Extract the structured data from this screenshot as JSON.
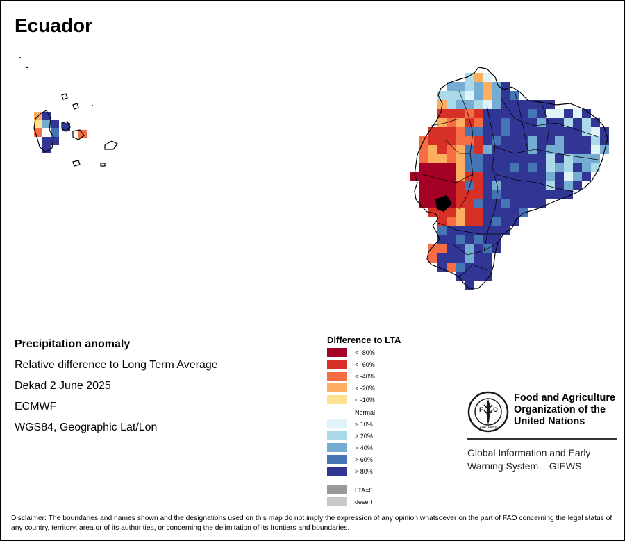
{
  "title": "Ecuador",
  "info": {
    "heading": "Precipitation anomaly",
    "subtitle": "Relative difference to Long Term Average",
    "period": "Dekad 2 June 2025",
    "source": "ECMWF",
    "projection": "WGS84, Geographic Lat/Lon"
  },
  "legend": {
    "title": "Difference to LTA",
    "items": [
      {
        "label": "< -80%",
        "color": "#a50026"
      },
      {
        "label": "< -60%",
        "color": "#d73027"
      },
      {
        "label": "< -40%",
        "color": "#f46d43"
      },
      {
        "label": "< -20%",
        "color": "#fdae61"
      },
      {
        "label": "< -10%",
        "color": "#fee090"
      },
      {
        "label": "> 10%",
        "color": "#e0f3f8"
      },
      {
        "label": "> 20%",
        "color": "#abd9e9"
      },
      {
        "label": "> 40%",
        "color": "#74add1"
      },
      {
        "label": "> 60%",
        "color": "#4575b4"
      },
      {
        "label": "> 80%",
        "color": "#313695"
      },
      {
        "label": "LTA=0",
        "color": "#999999"
      },
      {
        "label": "desert",
        "color": "#c8c8c8"
      }
    ],
    "normal_label": "Normal"
  },
  "fao": {
    "line1": "Food and Agriculture",
    "line2": "Organization of the",
    "line3": "United Nations",
    "logo_text": "FAO",
    "logo_motto": "FIAT PANIS"
  },
  "giews": {
    "line1": "Global Information and Early",
    "line2": "Warning System – GIEWS"
  },
  "disclaimer": "Disclaimer: The boundaries and names shown and the designations used on this map do not imply the expression of any opinion whatsoever on the part of FAO concerning the legal status of any country, territory, area or of its authorities, or concerning the delimitation of its frontiers and boundaries."
}
